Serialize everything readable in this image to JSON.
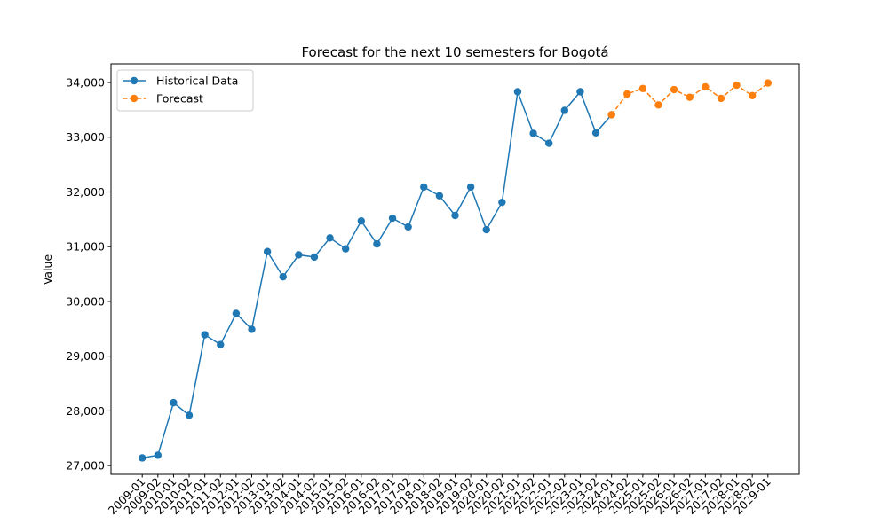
{
  "chart_data": {
    "type": "line",
    "title": "Forecast for the next 10 semesters for Bogotá",
    "xlabel": "",
    "ylabel": "Value",
    "ylim": [
      26840,
      34340
    ],
    "yticks": [
      27000,
      28000,
      29000,
      30000,
      31000,
      32000,
      33000,
      34000
    ],
    "ytick_labels": [
      "27,000",
      "28,000",
      "29,000",
      "30,000",
      "31,000",
      "32,000",
      "33,000",
      "34,000"
    ],
    "grid": false,
    "legend_position": "top-left",
    "categories": [
      "2009-01",
      "2009-02",
      "2010-01",
      "2010-02",
      "2011-01",
      "2011-02",
      "2012-01",
      "2012-02",
      "2013-01",
      "2013-02",
      "2014-01",
      "2014-02",
      "2015-01",
      "2015-02",
      "2016-01",
      "2016-02",
      "2017-01",
      "2017-02",
      "2018-01",
      "2018-02",
      "2019-01",
      "2019-02",
      "2020-01",
      "2020-02",
      "2021-01",
      "2021-02",
      "2022-01",
      "2022-02",
      "2023-01",
      "2023-02",
      "2024-01",
      "2024-02",
      "2025-01",
      "2025-02",
      "2026-01",
      "2026-02",
      "2027-01",
      "2027-02",
      "2028-01",
      "2028-02",
      "2029-01"
    ],
    "series": [
      {
        "name": "Historical Data",
        "color": "#1f77b4",
        "style": "solid",
        "x": [
          "2009-01",
          "2009-02",
          "2010-01",
          "2010-02",
          "2011-01",
          "2011-02",
          "2012-01",
          "2012-02",
          "2013-01",
          "2013-02",
          "2014-01",
          "2014-02",
          "2015-01",
          "2015-02",
          "2016-01",
          "2016-02",
          "2017-01",
          "2017-02",
          "2018-01",
          "2018-02",
          "2019-01",
          "2019-02",
          "2020-01",
          "2020-02",
          "2021-01",
          "2021-02",
          "2022-01",
          "2022-02",
          "2023-01",
          "2023-02",
          "2024-01"
        ],
        "values": [
          27140,
          27190,
          28150,
          27920,
          29390,
          29210,
          29780,
          29490,
          30910,
          30450,
          30850,
          30810,
          31160,
          30960,
          31470,
          31050,
          31520,
          31360,
          32090,
          31930,
          31570,
          32090,
          31310,
          31810,
          33830,
          33070,
          32890,
          33490,
          33830,
          33080,
          33410
        ]
      },
      {
        "name": "Forecast",
        "color": "#ff7f0e",
        "style": "dashed",
        "x": [
          "2024-01",
          "2024-02",
          "2025-01",
          "2025-02",
          "2026-01",
          "2026-02",
          "2027-01",
          "2027-02",
          "2028-01",
          "2028-02",
          "2029-01"
        ],
        "values": [
          33410,
          33790,
          33890,
          33590,
          33870,
          33730,
          33920,
          33710,
          33950,
          33760,
          33990
        ]
      }
    ]
  }
}
